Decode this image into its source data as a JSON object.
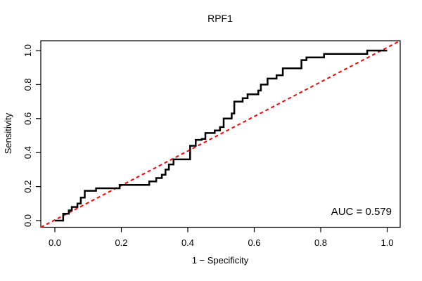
{
  "colors": {
    "background": "#ffffff",
    "curve": "#000000",
    "reference_line": "#ff0000",
    "box": "#000000",
    "text": "#000000"
  },
  "annotation": {
    "auc_label": "AUC = 0.579"
  },
  "chart_data": {
    "type": "line",
    "subtype": "roc-step-curve",
    "title": "RPF1",
    "xlabel": "1 − Specificity",
    "ylabel": "Sensitivity",
    "xlim": [
      0,
      1
    ],
    "ylim": [
      0,
      1
    ],
    "grid": false,
    "legend_position": "none",
    "auc": 0.579,
    "x_ticks": {
      "values": [
        0,
        0.2,
        0.4,
        0.6,
        0.8,
        1.0
      ],
      "labels": [
        "0.0",
        "0.2",
        "0.4",
        "0.6",
        "0.8",
        "1.0"
      ]
    },
    "y_ticks": {
      "values": [
        0,
        0.2,
        0.4,
        0.6,
        0.8,
        1.0
      ],
      "labels": [
        "0.0",
        "0.2",
        "0.4",
        "0.6",
        "0.8",
        "1.0"
      ]
    },
    "series": [
      {
        "name": "ROC curve",
        "style": "solid-step",
        "color": "#000000",
        "step_knots": [
          [
            0.0,
            0.0
          ],
          [
            0.025,
            0.04
          ],
          [
            0.042,
            0.06
          ],
          [
            0.051,
            0.08
          ],
          [
            0.068,
            0.1
          ],
          [
            0.078,
            0.135
          ],
          [
            0.09,
            0.175
          ],
          [
            0.124,
            0.19
          ],
          [
            0.195,
            0.21
          ],
          [
            0.284,
            0.23
          ],
          [
            0.305,
            0.25
          ],
          [
            0.322,
            0.27
          ],
          [
            0.333,
            0.3
          ],
          [
            0.343,
            0.33
          ],
          [
            0.357,
            0.36
          ],
          [
            0.407,
            0.44
          ],
          [
            0.424,
            0.475
          ],
          [
            0.442,
            0.48
          ],
          [
            0.453,
            0.515
          ],
          [
            0.481,
            0.53
          ],
          [
            0.497,
            0.55
          ],
          [
            0.508,
            0.6
          ],
          [
            0.532,
            0.63
          ],
          [
            0.54,
            0.7
          ],
          [
            0.565,
            0.72
          ],
          [
            0.58,
            0.743
          ],
          [
            0.612,
            0.765
          ],
          [
            0.62,
            0.8
          ],
          [
            0.64,
            0.835
          ],
          [
            0.667,
            0.855
          ],
          [
            0.686,
            0.896
          ],
          [
            0.742,
            0.944
          ],
          [
            0.757,
            0.96
          ],
          [
            0.81,
            0.98
          ],
          [
            0.94,
            1.0
          ],
          [
            1.0,
            1.0
          ]
        ]
      },
      {
        "name": "chance diagonal",
        "style": "dashed",
        "color": "#ff0000",
        "from": [
          0,
          0
        ],
        "to": [
          1,
          1
        ]
      }
    ]
  }
}
